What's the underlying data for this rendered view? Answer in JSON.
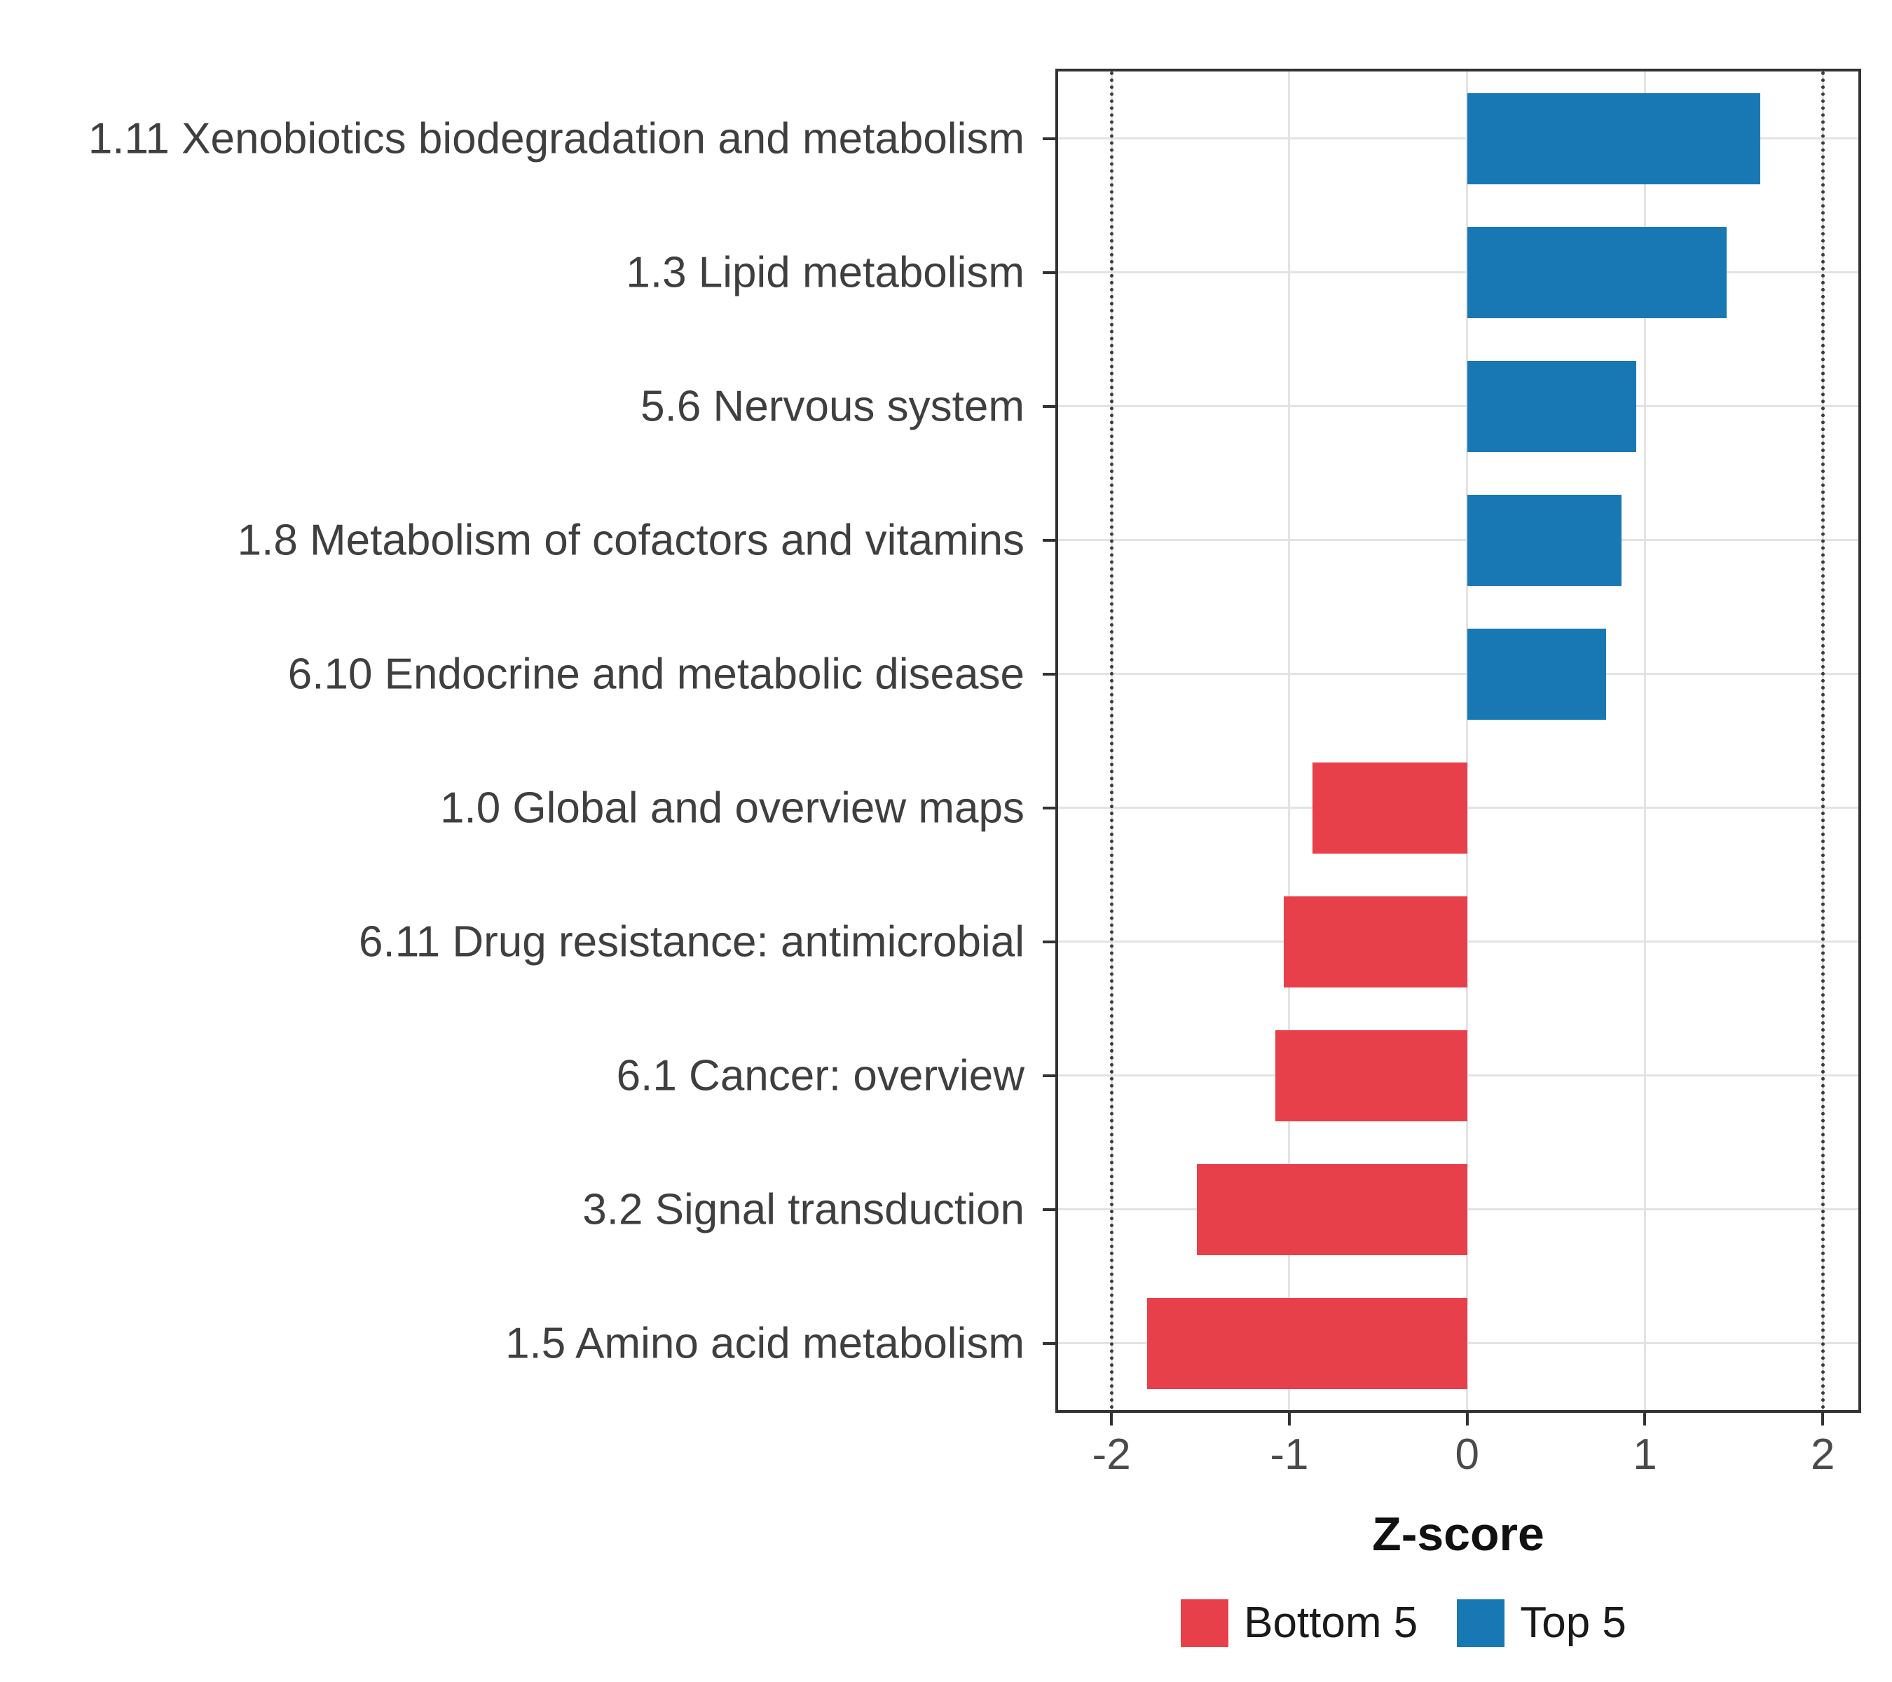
{
  "chart_data": {
    "type": "bar",
    "orientation": "horizontal",
    "title": "",
    "xlabel": "Z-score",
    "xlim": [
      -2.3,
      2.2
    ],
    "xticks": [
      -2,
      -1,
      0,
      1,
      2
    ],
    "reference_lines": [
      -2,
      2
    ],
    "grid": true,
    "legend_position": "bottom",
    "categories": [
      "1.11 Xenobiotics biodegradation and metabolism",
      "1.3 Lipid metabolism",
      "5.6 Nervous system",
      "1.8 Metabolism of cofactors and vitamins",
      "6.10 Endocrine and metabolic disease",
      "1.0 Global and overview maps",
      "6.11 Drug resistance: antimicrobial",
      "6.1 Cancer: overview",
      "3.2 Signal transduction",
      "1.5 Amino acid metabolism"
    ],
    "values": [
      1.65,
      1.46,
      0.95,
      0.87,
      0.78,
      -0.87,
      -1.03,
      -1.08,
      -1.52,
      -1.8
    ],
    "groups": [
      "Top 5",
      "Top 5",
      "Top 5",
      "Top 5",
      "Top 5",
      "Bottom 5",
      "Bottom 5",
      "Bottom 5",
      "Bottom 5",
      "Bottom 5"
    ],
    "colors": {
      "Bottom 5": "#e8404b",
      "Top 5": "#1878b4"
    },
    "legend": [
      "Bottom 5",
      "Top 5"
    ]
  }
}
